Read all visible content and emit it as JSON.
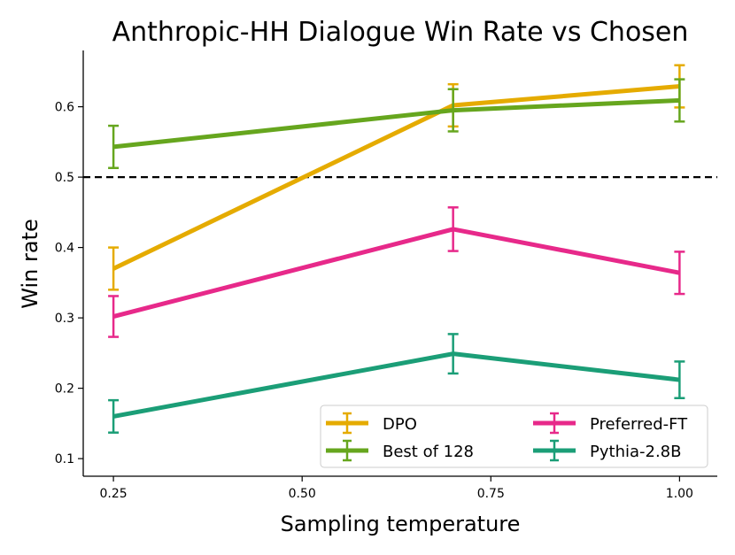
{
  "chart_data": {
    "type": "line",
    "title": "Anthropic-HH Dialogue Win Rate vs Chosen",
    "xlabel": "Sampling temperature",
    "ylabel": "Win rate",
    "xlim": [
      0.21,
      1.05
    ],
    "ylim": [
      0.075,
      0.68
    ],
    "xticks": [
      "0.25",
      "0.50",
      "0.75",
      "1.00"
    ],
    "xtick_values": [
      0.25,
      0.5,
      0.75,
      1.0
    ],
    "yticks": [
      "0.1",
      "0.2",
      "0.3",
      "0.4",
      "0.5",
      "0.6"
    ],
    "ytick_values": [
      0.1,
      0.2,
      0.3,
      0.4,
      0.5,
      0.6
    ],
    "reference_line": {
      "y": 0.5,
      "style": "dashed",
      "color": "#000000"
    },
    "grid": false,
    "legend_placement": "lower-right",
    "x": [
      0.25,
      0.7,
      1.0
    ],
    "series": [
      {
        "name": "DPO",
        "color": "#e5ab00",
        "values": [
          0.37,
          0.602,
          0.629
        ],
        "errors": [
          0.03,
          0.03,
          0.03
        ]
      },
      {
        "name": "Best of 128",
        "color": "#66a61e",
        "values": [
          0.543,
          0.595,
          0.609
        ],
        "errors": [
          0.03,
          0.03,
          0.03
        ]
      },
      {
        "name": "Preferred-FT",
        "color": "#e7298a",
        "values": [
          0.302,
          0.426,
          0.364
        ],
        "errors": [
          0.029,
          0.031,
          0.03
        ]
      },
      {
        "name": "Pythia-2.8B",
        "color": "#1b9e77",
        "values": [
          0.16,
          0.249,
          0.212
        ],
        "errors": [
          0.023,
          0.028,
          0.026
        ]
      }
    ]
  }
}
